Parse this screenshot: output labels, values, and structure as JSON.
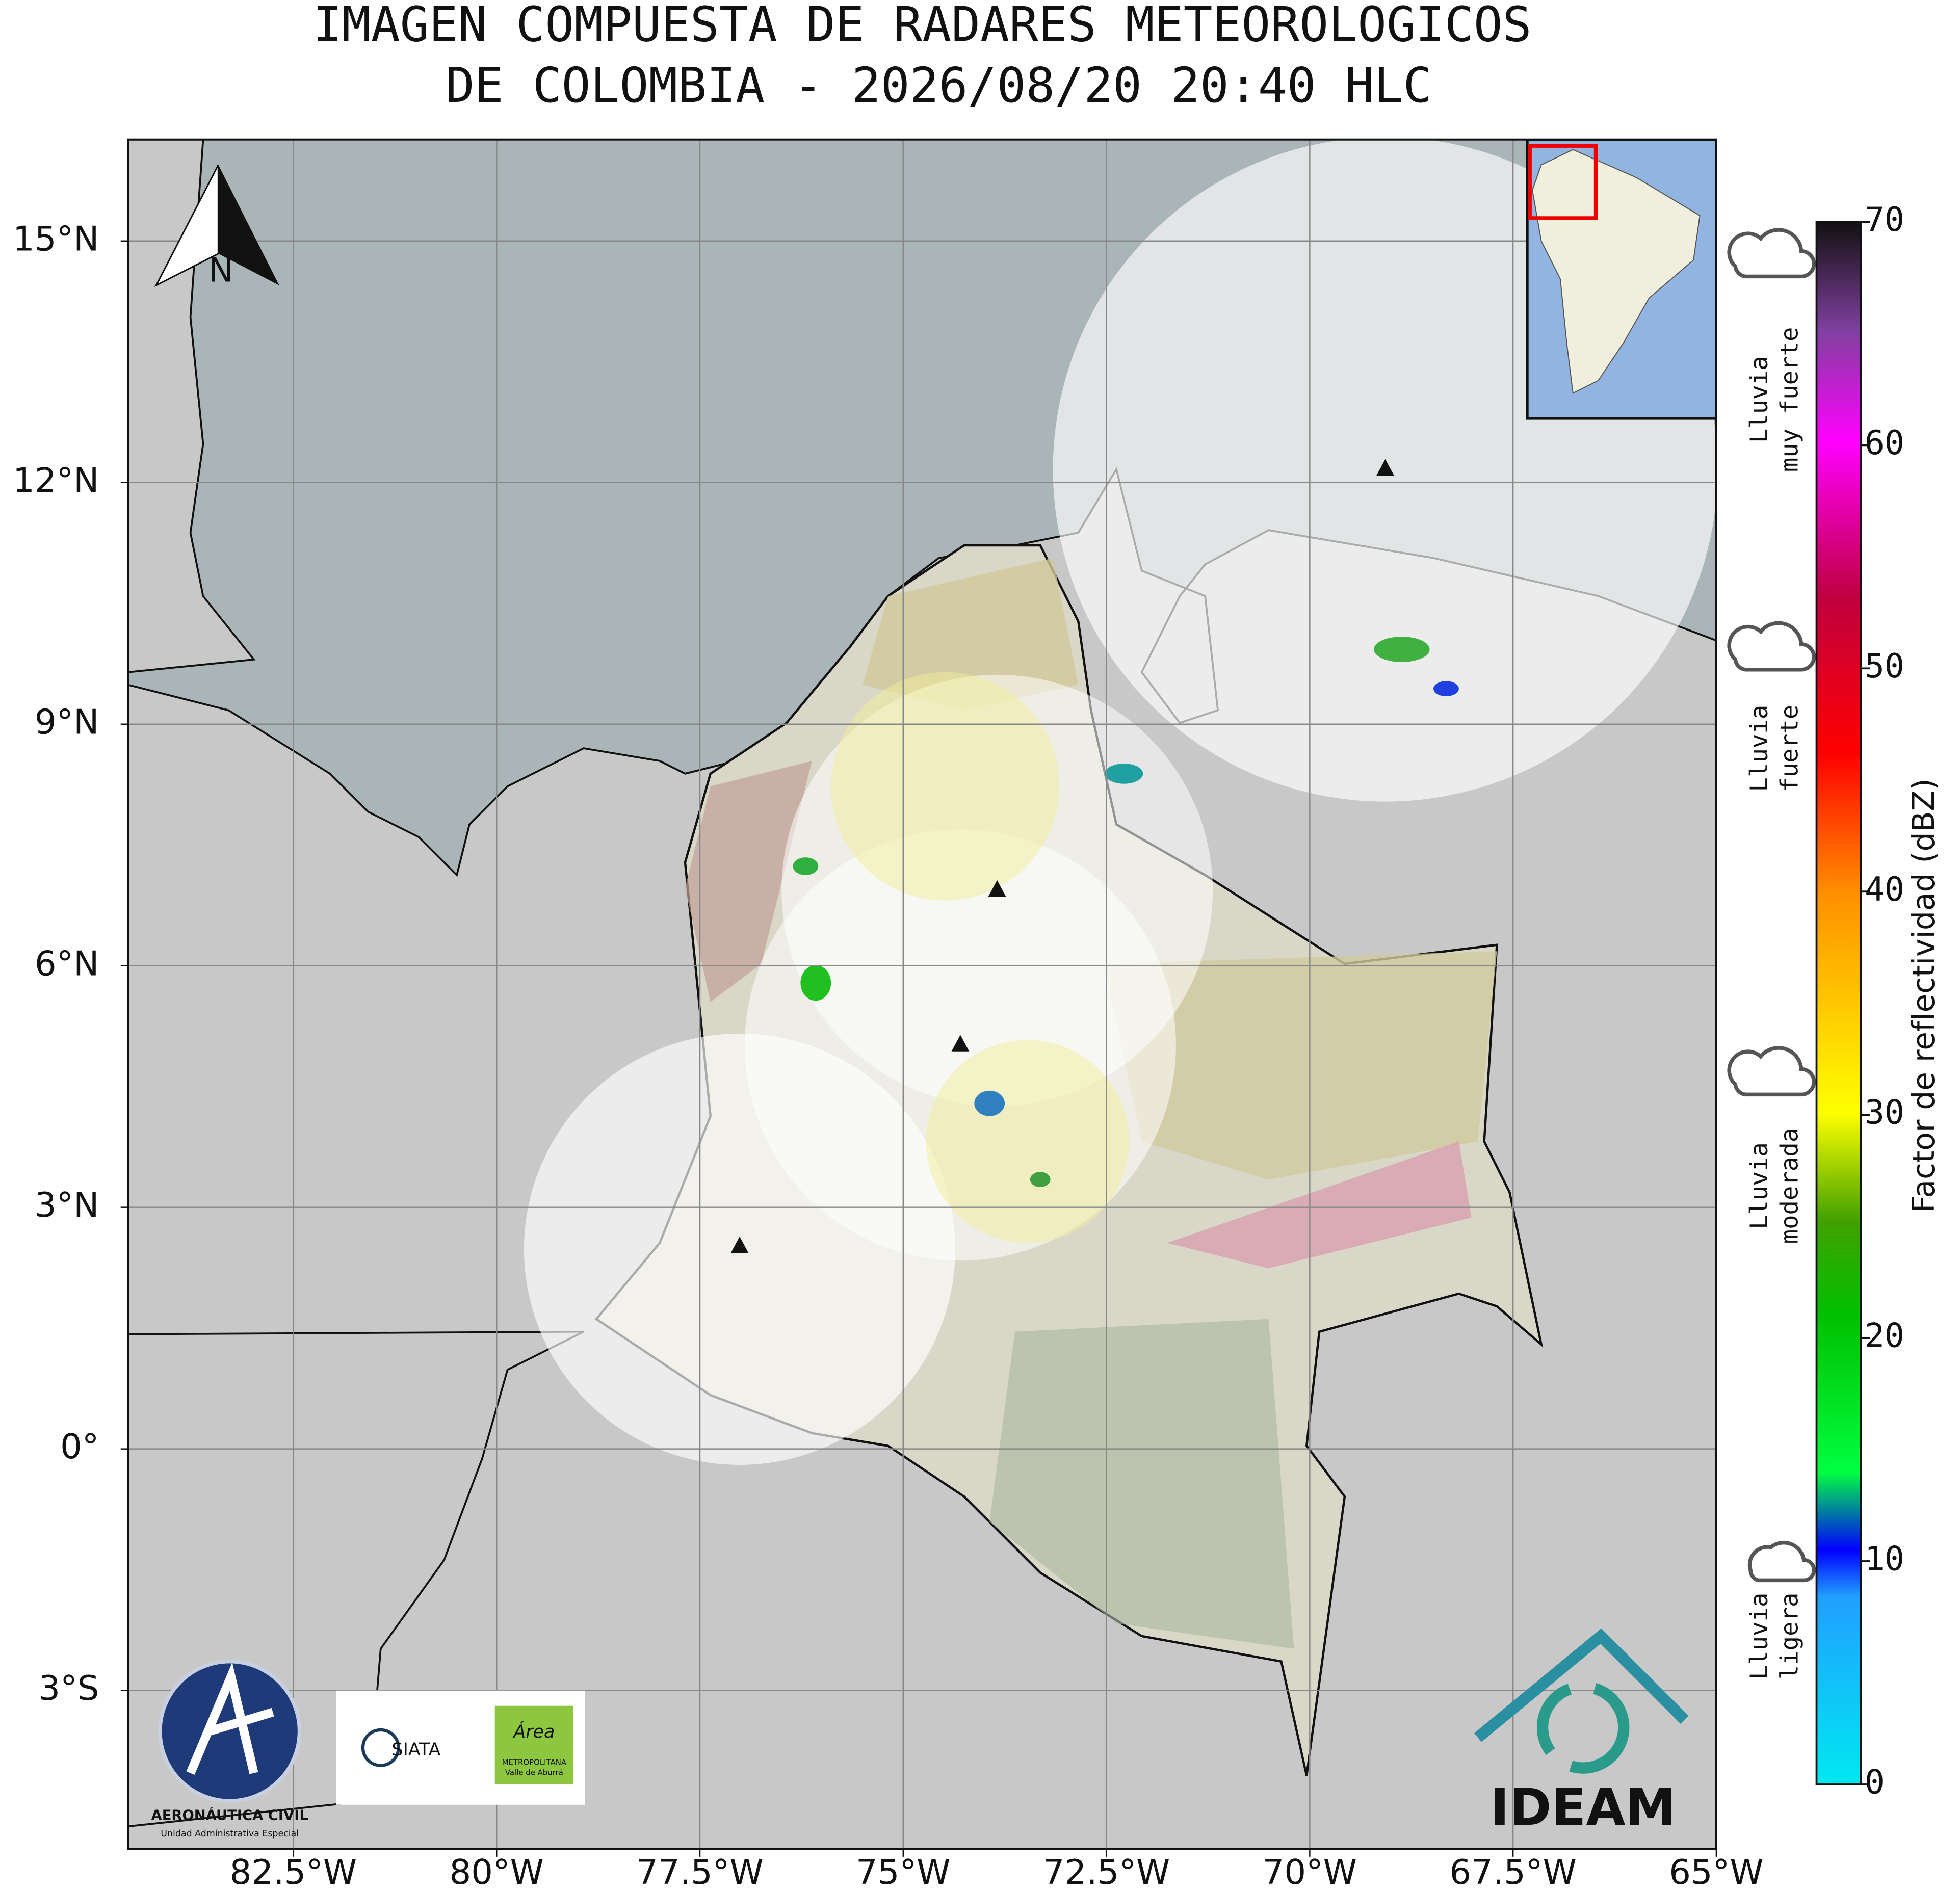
{
  "title_lines": [
    "IMAGEN COMPUESTA DE RADARES METEOROLOGICOS",
    "DE COLOMBIA - 2026/08/20 20:40 HLC"
  ],
  "map": {
    "xlim": [
      -84.53,
      -65
    ],
    "ylim": [
      -4.97,
      16.26
    ],
    "xticks": [
      {
        "value": -82.5,
        "label": "82.5°W"
      },
      {
        "value": -80,
        "label": "80°W"
      },
      {
        "value": -77.5,
        "label": "77.5°W"
      },
      {
        "value": -75,
        "label": "75°W"
      },
      {
        "value": -72.5,
        "label": "72.5°W"
      },
      {
        "value": -70,
        "label": "70°W"
      },
      {
        "value": -67.5,
        "label": "67.5°W"
      },
      {
        "value": -65,
        "label": "65°W"
      }
    ],
    "yticks": [
      {
        "value": 15,
        "label": "15°N"
      },
      {
        "value": 12,
        "label": "12°N"
      },
      {
        "value": 9,
        "label": "9°N"
      },
      {
        "value": 6,
        "label": "6°N"
      },
      {
        "value": 3,
        "label": "3°N"
      },
      {
        "value": 0,
        "label": "0°"
      },
      {
        "value": -3,
        "label": "3°S"
      }
    ],
    "grid": true,
    "north_label": "N"
  },
  "colorbar": {
    "label": "Factor de reflectividad (dBZ)",
    "lim": [
      0,
      70
    ],
    "ticks": [
      0,
      10,
      20,
      30,
      40,
      50,
      60,
      70
    ]
  },
  "rain_levels": [
    [
      "Lluvia",
      "muy fuerte"
    ],
    [
      "Lluvia",
      "fuerte"
    ],
    [
      "Lluvia",
      "moderada"
    ],
    [
      "Lluvia",
      "ligera"
    ]
  ],
  "logos": {
    "aerocivil": [
      "AERONÁUTICA CIVIL",
      "Unidad Administrativa Especial"
    ],
    "siata": "SIATA",
    "area": [
      "Área",
      "METROPOLITANA",
      "Valle de Aburrá"
    ],
    "ideam": "IDEAM"
  }
}
